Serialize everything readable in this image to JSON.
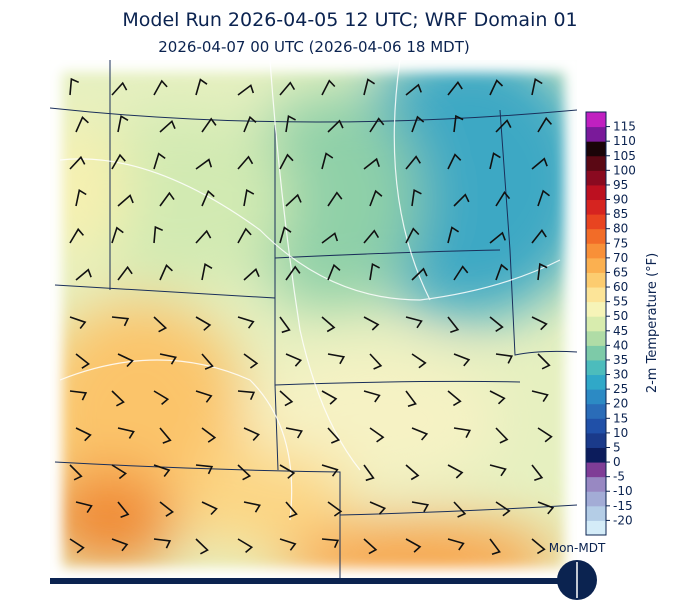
{
  "header": {
    "title": "Model Run 2026-04-05 12 UTC; WRF Domain 01",
    "subtitle": "2026-04-07 00 UTC  (2026-04-06 18 MDT)"
  },
  "colorbar": {
    "label": "2-m Temperature (°F)",
    "lim": [
      -25,
      120
    ],
    "ticks": [
      -20,
      -15,
      -10,
      -5,
      0,
      5,
      10,
      15,
      20,
      25,
      30,
      35,
      40,
      45,
      50,
      55,
      60,
      65,
      70,
      75,
      80,
      85,
      90,
      95,
      100,
      105,
      110,
      115
    ],
    "colors": [
      "#d4ecf8",
      "#b4cde6",
      "#a3acd6",
      "#9888c2",
      "#7f3d96",
      "#0c1c5c",
      "#1a3a8a",
      "#2050a8",
      "#2a6cb8",
      "#2c8ac4",
      "#30a8c8",
      "#4cbcbc",
      "#7dcaa8",
      "#b0dca6",
      "#d8ecae",
      "#f6f4b8",
      "#fce498",
      "#fccc70",
      "#fbb050",
      "#f89038",
      "#f26c28",
      "#e84420",
      "#d62420",
      "#bc1020",
      "#8a0a20",
      "#5a0814",
      "#1a0408",
      "#7a1a9a",
      "#c020c0"
    ]
  },
  "timeline": {
    "label": "Mon-MDT"
  }
}
